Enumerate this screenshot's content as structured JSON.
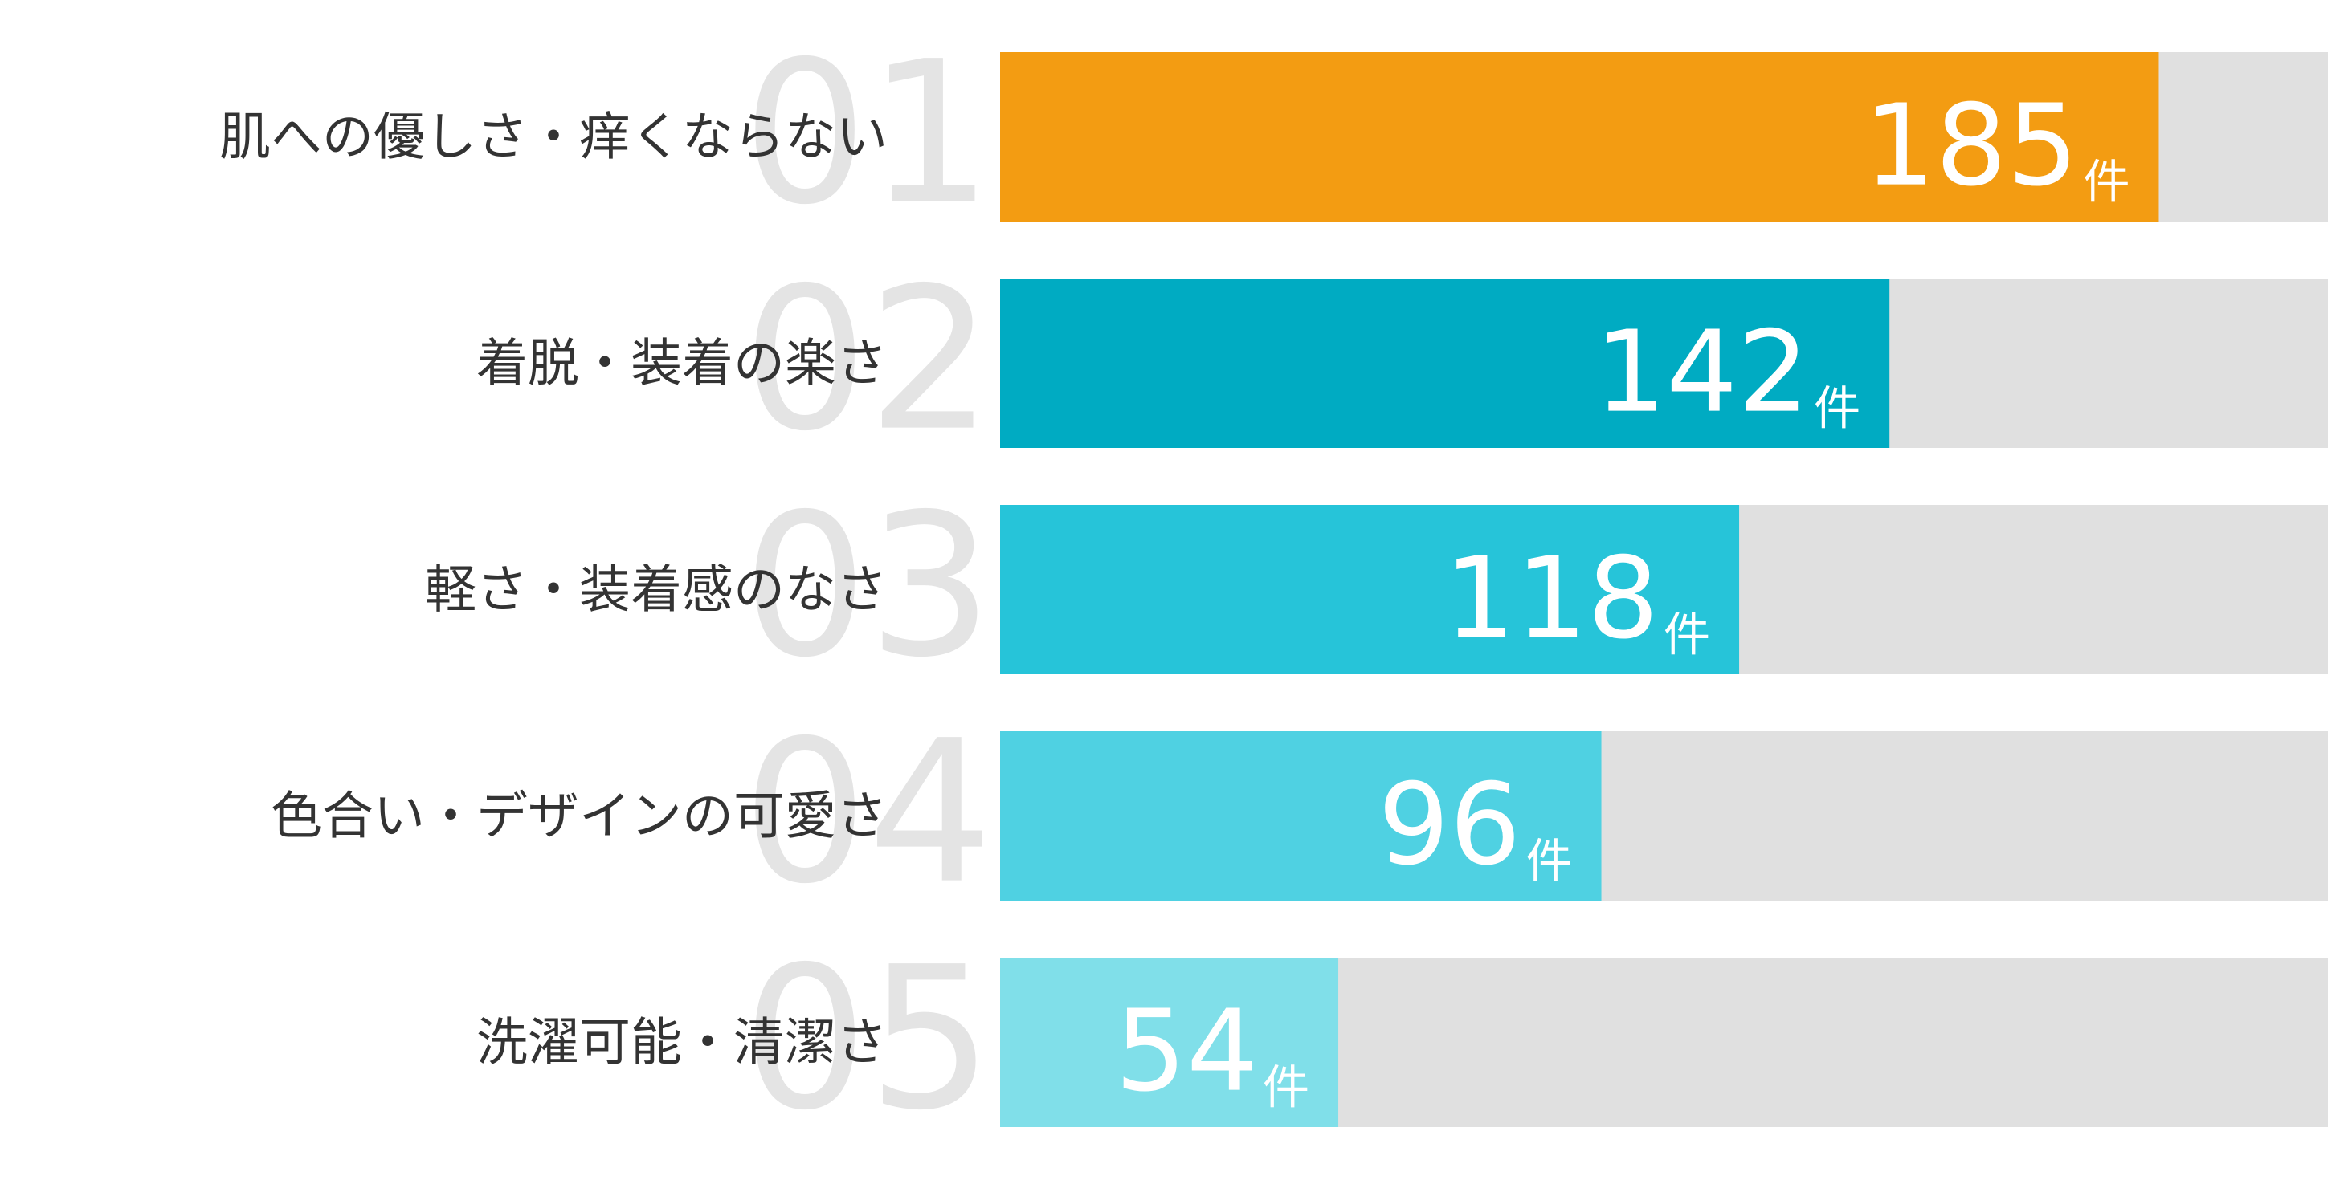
{
  "chart_data": {
    "type": "ranked-bar",
    "ranks": [
      "01",
      "02",
      "03",
      "04",
      "05"
    ],
    "categories": [
      "肌への優しさ・痒くならない",
      "着脱・装着の楽さ",
      "軽さ・装着感のなさ",
      "色合い・デザインの可愛さ",
      "洗濯可能・清潔さ"
    ],
    "values": [
      185,
      142,
      118,
      96,
      54
    ],
    "unit": "件",
    "colors": [
      "#f39c12",
      "#00abc2",
      "#26c4d9",
      "#4fd1e2",
      "#80dfe9"
    ],
    "track_color": "#e0e0e0",
    "xlim": [
      0,
      212
    ]
  }
}
